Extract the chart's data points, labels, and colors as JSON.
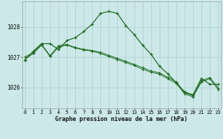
{
  "background_color": "#cce8e8",
  "grid_color": "#aacccc",
  "line_color": "#1a6b1a",
  "title": "Graphe pression niveau de la mer (hPa)",
  "hours": [
    0,
    1,
    2,
    3,
    4,
    5,
    6,
    7,
    8,
    9,
    10,
    11,
    12,
    13,
    14,
    15,
    16,
    17,
    18,
    19,
    20,
    21,
    22,
    23
  ],
  "series1": [
    1026.9,
    1027.2,
    1027.45,
    1027.45,
    1027.25,
    1027.55,
    1027.65,
    1027.85,
    1028.1,
    1028.45,
    1028.52,
    1028.45,
    1028.05,
    1027.75,
    1027.4,
    1027.1,
    1026.7,
    1026.45,
    1026.15,
    1025.85,
    1025.75,
    1026.3,
    1026.1,
    1026.1
  ],
  "series2": [
    1027.0,
    1027.15,
    1027.42,
    1027.05,
    1027.38,
    1027.42,
    1027.32,
    1027.26,
    1027.22,
    1027.16,
    1027.06,
    1026.96,
    1026.86,
    1026.76,
    1026.65,
    1026.54,
    1026.48,
    1026.33,
    1026.18,
    1025.82,
    1025.72,
    1026.22,
    1026.32,
    1025.98
  ],
  "series3": [
    1026.92,
    1027.12,
    1027.4,
    1027.02,
    1027.33,
    1027.4,
    1027.3,
    1027.24,
    1027.2,
    1027.12,
    1027.02,
    1026.92,
    1026.82,
    1026.72,
    1026.6,
    1026.5,
    1026.44,
    1026.28,
    1026.13,
    1025.78,
    1025.68,
    1026.18,
    1026.28,
    1025.93
  ],
  "yticks": [
    1026,
    1027,
    1028
  ],
  "ylim": [
    1025.3,
    1028.85
  ],
  "xlim": [
    -0.3,
    23.3
  ],
  "tick_fontsize": 5.0,
  "label_fontsize": 6.0
}
